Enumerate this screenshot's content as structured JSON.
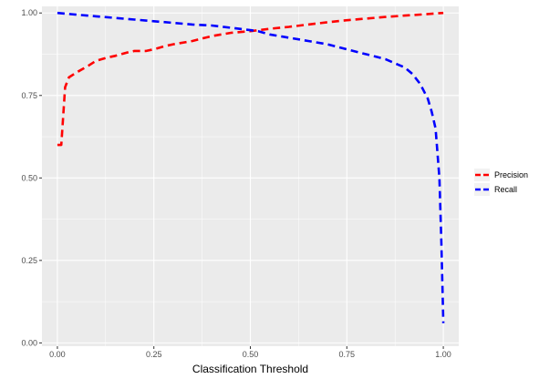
{
  "chart_data": {
    "type": "line",
    "title": "",
    "xlabel": "Classification Threshold",
    "ylabel": "",
    "xlim": [
      -0.04,
      1.04
    ],
    "ylim": [
      -0.01,
      1.02
    ],
    "x_ticks": [
      {
        "value": 0.0,
        "label": "0.00"
      },
      {
        "value": 0.25,
        "label": "0.25"
      },
      {
        "value": 0.5,
        "label": "0.50"
      },
      {
        "value": 0.75,
        "label": "0.75"
      },
      {
        "value": 1.0,
        "label": "1.00"
      }
    ],
    "y_ticks": [
      {
        "value": 0.0,
        "label": "0.00"
      },
      {
        "value": 0.25,
        "label": "0.25"
      },
      {
        "value": 0.5,
        "label": "0.50"
      },
      {
        "value": 0.75,
        "label": "0.75"
      },
      {
        "value": 1.0,
        "label": "1.00"
      }
    ],
    "grid": true,
    "panel_background": "#ebebeb",
    "grid_color": "#ffffff",
    "legend_position": "right",
    "series": [
      {
        "name": "Precision",
        "color": "#ff0000",
        "line_style": "dashed",
        "x": [
          0.0,
          0.01,
          0.02,
          0.03,
          0.05,
          0.08,
          0.1,
          0.13,
          0.15,
          0.18,
          0.2,
          0.23,
          0.25,
          0.28,
          0.3,
          0.35,
          0.4,
          0.45,
          0.5,
          0.55,
          0.6,
          0.65,
          0.7,
          0.75,
          0.8,
          0.85,
          0.9,
          0.95,
          1.0
        ],
        "y": [
          0.6,
          0.6,
          0.775,
          0.805,
          0.82,
          0.84,
          0.855,
          0.865,
          0.87,
          0.88,
          0.885,
          0.885,
          0.89,
          0.9,
          0.905,
          0.915,
          0.93,
          0.94,
          0.945,
          0.952,
          0.958,
          0.965,
          0.972,
          0.978,
          0.983,
          0.988,
          0.992,
          0.996,
          1.0
        ]
      },
      {
        "name": "Recall",
        "color": "#0000ff",
        "line_style": "dashed",
        "x": [
          0.0,
          0.05,
          0.1,
          0.15,
          0.2,
          0.25,
          0.3,
          0.35,
          0.4,
          0.45,
          0.5,
          0.52,
          0.55,
          0.6,
          0.65,
          0.7,
          0.75,
          0.8,
          0.85,
          0.88,
          0.9,
          0.92,
          0.94,
          0.96,
          0.97,
          0.98,
          0.99,
          0.995,
          1.0
        ],
        "y": [
          1.0,
          0.995,
          0.99,
          0.985,
          0.98,
          0.975,
          0.97,
          0.965,
          0.962,
          0.955,
          0.948,
          0.945,
          0.935,
          0.925,
          0.915,
          0.905,
          0.89,
          0.875,
          0.86,
          0.845,
          0.835,
          0.815,
          0.785,
          0.74,
          0.7,
          0.65,
          0.5,
          0.3,
          0.06
        ]
      }
    ]
  }
}
